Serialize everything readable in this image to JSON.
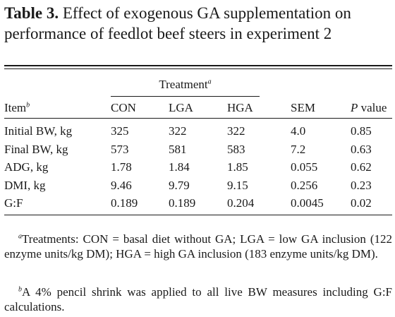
{
  "table": {
    "label": "Table 3.",
    "title": "Effect of exogenous GA supplementation on performance of feedlot beef steers in experiment 2",
    "group_header": "Treatment",
    "group_header_sup": "a",
    "item_header": "Item",
    "item_header_sup": "b",
    "columns": {
      "con": "CON",
      "lga": "LGA",
      "hga": "HGA",
      "sem": "SEM",
      "p_italic": "P",
      "p_rest": " value"
    },
    "rows": [
      {
        "item": "Initial BW, kg",
        "con": "325",
        "lga": "322",
        "hga": "322",
        "sem": "4.0",
        "p": "0.85"
      },
      {
        "item": "Final BW, kg",
        "con": "573",
        "lga": "581",
        "hga": "583",
        "sem": "7.2",
        "p": "0.63"
      },
      {
        "item": "ADG, kg",
        "con": "1.78",
        "lga": "1.84",
        "hga": "1.85",
        "sem": "0.055",
        "p": "0.62"
      },
      {
        "item": "DMI, kg",
        "con": "9.46",
        "lga": "9.79",
        "hga": "9.15",
        "sem": "0.256",
        "p": "0.23"
      },
      {
        "item": "G:F",
        "con": "0.189",
        "lga": "0.189",
        "hga": "0.204",
        "sem": "0.0045",
        "p": "0.02"
      }
    ],
    "footnotes": [
      {
        "mark": "a",
        "text": "Treatments: CON = basal diet without GA; LGA = low GA inclusion (122 enzyme units/kg DM); HGA = high GA inclusion (183 enzyme units/kg DM)."
      },
      {
        "mark": "b",
        "text": "A 4% pencil shrink was applied to all live BW measures including G:F calculations."
      }
    ]
  }
}
